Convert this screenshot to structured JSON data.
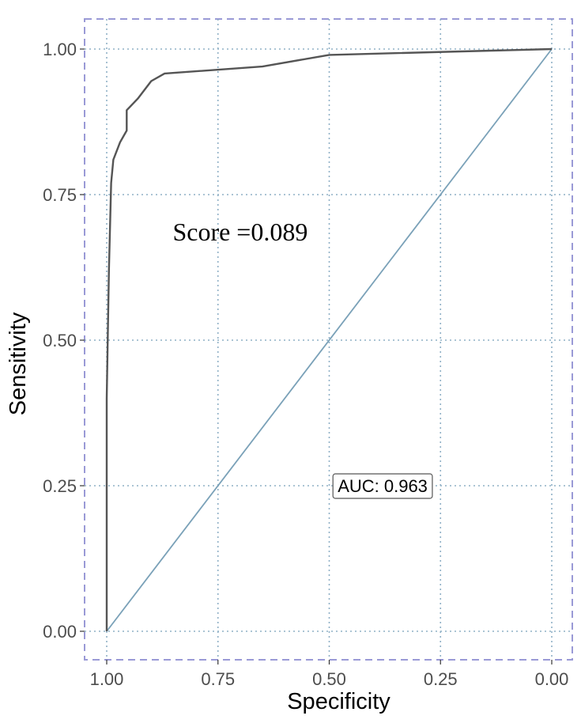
{
  "chart_data": {
    "type": "line",
    "xlabel": "Specificity",
    "ylabel": "Sensitivity",
    "x_reversed": true,
    "xlim": [
      1.0,
      0.0
    ],
    "ylim": [
      0.0,
      1.0
    ],
    "x_ticks": [
      "1.00",
      "0.75",
      "0.50",
      "0.25",
      "0.00"
    ],
    "x_tick_values": [
      1.0,
      0.75,
      0.5,
      0.25,
      0.0
    ],
    "y_ticks": [
      "0.00",
      "0.25",
      "0.50",
      "0.75",
      "1.00"
    ],
    "y_tick_values": [
      0.0,
      0.25,
      0.5,
      0.75,
      1.0
    ],
    "grid": true,
    "grid_style": "dotted",
    "series": [
      {
        "role": "roc-curve",
        "color": "#555555",
        "points": [
          {
            "specificity": 1.0,
            "sensitivity": 0.0
          },
          {
            "specificity": 1.0,
            "sensitivity": 0.4
          },
          {
            "specificity": 0.995,
            "sensitivity": 0.62
          },
          {
            "specificity": 0.99,
            "sensitivity": 0.77
          },
          {
            "specificity": 0.985,
            "sensitivity": 0.81
          },
          {
            "specificity": 0.97,
            "sensitivity": 0.84
          },
          {
            "specificity": 0.955,
            "sensitivity": 0.86
          },
          {
            "specificity": 0.955,
            "sensitivity": 0.895
          },
          {
            "specificity": 0.93,
            "sensitivity": 0.915
          },
          {
            "specificity": 0.9,
            "sensitivity": 0.945
          },
          {
            "specificity": 0.87,
            "sensitivity": 0.958
          },
          {
            "specificity": 0.65,
            "sensitivity": 0.97
          },
          {
            "specificity": 0.5,
            "sensitivity": 0.99
          },
          {
            "specificity": 0.0,
            "sensitivity": 1.0
          }
        ]
      },
      {
        "role": "reference-diagonal",
        "color": "#7aa1b8",
        "points": [
          {
            "specificity": 1.0,
            "sensitivity": 0.0
          },
          {
            "specificity": 0.0,
            "sensitivity": 1.0
          }
        ]
      }
    ],
    "annotations": [
      {
        "text": "Score =0.089",
        "specificity": 0.7,
        "sensitivity": 0.685
      },
      {
        "text": "AUC: 0.963",
        "specificity": 0.38,
        "sensitivity": 0.25,
        "boxed": true
      }
    ],
    "colors": {
      "grid": "#8fb0c6",
      "border": "#9a9ad6",
      "tick_text": "#4d4d4d",
      "axis_title": "#000000"
    }
  }
}
